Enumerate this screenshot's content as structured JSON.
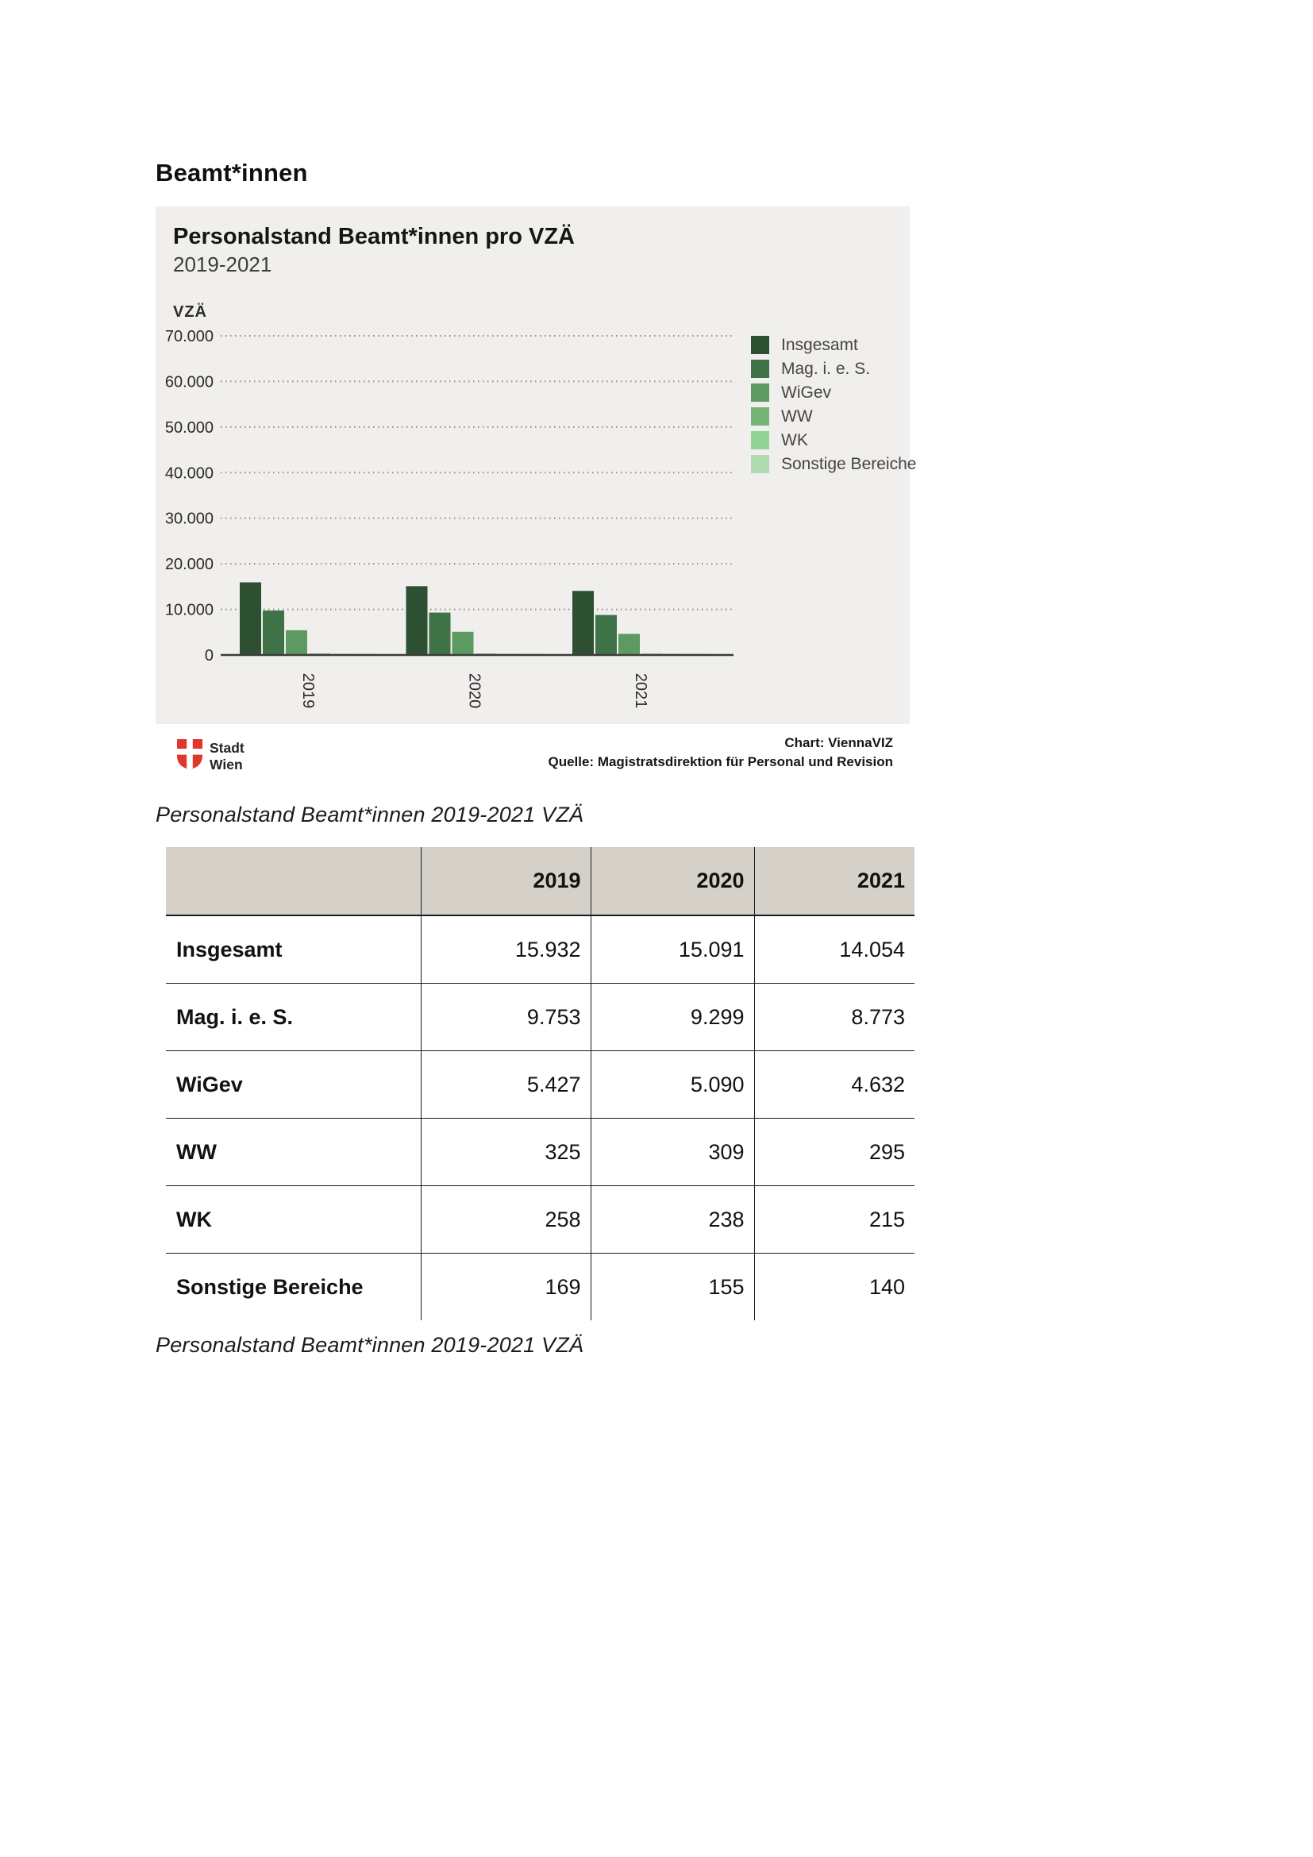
{
  "page": {
    "heading": "Beamt*innen"
  },
  "chart": {
    "title": "Personalstand Beamt*innen pro VZÄ",
    "subtitle": "2019-2021",
    "axis_label": "VZÄ",
    "source_line1": "Chart: ViennaVIZ",
    "source_line2": "Quelle: Magistratsdirektion für Personal und Revision",
    "logo": {
      "line1": "Stadt",
      "line2": "Wien",
      "shield_color": "#e2362b"
    }
  },
  "chart_data": {
    "type": "bar",
    "title": "Personalstand Beamt*innen pro VZÄ",
    "subtitle": "2019-2021",
    "ylabel": "VZÄ",
    "categories": [
      "2019",
      "2020",
      "2021"
    ],
    "series": [
      {
        "name": "Insgesamt",
        "color": "#2d4f32",
        "values": [
          15932,
          15091,
          14054
        ]
      },
      {
        "name": "Mag. i. e. S.",
        "color": "#3f7347",
        "values": [
          9753,
          9299,
          8773
        ]
      },
      {
        "name": "WiGev",
        "color": "#5d9a62",
        "values": [
          5427,
          5090,
          4632
        ]
      },
      {
        "name": "WW",
        "color": "#75b377",
        "values": [
          325,
          309,
          295
        ]
      },
      {
        "name": "WK",
        "color": "#92d495",
        "values": [
          258,
          238,
          215
        ]
      },
      {
        "name": "Sonstige Bereiche",
        "color": "#aedcb0",
        "values": [
          169,
          155,
          140
        ]
      }
    ],
    "ylim": [
      0,
      70000
    ],
    "yticks": [
      {
        "value": 70000,
        "label": "70.000"
      },
      {
        "value": 60000,
        "label": "60.000"
      },
      {
        "value": 50000,
        "label": "50.000"
      },
      {
        "value": 40000,
        "label": "40.000"
      },
      {
        "value": 30000,
        "label": "30.000"
      },
      {
        "value": 20000,
        "label": "20.000"
      },
      {
        "value": 10000,
        "label": "10.000"
      },
      {
        "value": 0,
        "label": "0"
      }
    ],
    "grid": "horizontal-dotted",
    "legend_position": "right",
    "gridline_color": "#8f8e8a",
    "axis_line_color": "#3b3a39",
    "tick_label_color": "#2b2a29"
  },
  "caption_top": "Personalstand Beamt*innen 2019-2021 VZÄ",
  "caption_bottom": "Personalstand Beamt*innen 2019-2021 VZÄ",
  "table": {
    "columns": [
      "",
      "2019",
      "2020",
      "2021"
    ],
    "rows": [
      {
        "label": "Insgesamt",
        "values": [
          "15.932",
          "15.091",
          "14.054"
        ]
      },
      {
        "label": "Mag. i. e. S.",
        "values": [
          "9.753",
          "9.299",
          "8.773"
        ]
      },
      {
        "label": "WiGev",
        "values": [
          "5.427",
          "5.090",
          "4.632"
        ]
      },
      {
        "label": "WW",
        "values": [
          "325",
          "309",
          "295"
        ]
      },
      {
        "label": "WK",
        "values": [
          "258",
          "238",
          "215"
        ]
      },
      {
        "label": "Sonstige Bereiche",
        "values": [
          "169",
          "155",
          "140"
        ]
      }
    ]
  }
}
